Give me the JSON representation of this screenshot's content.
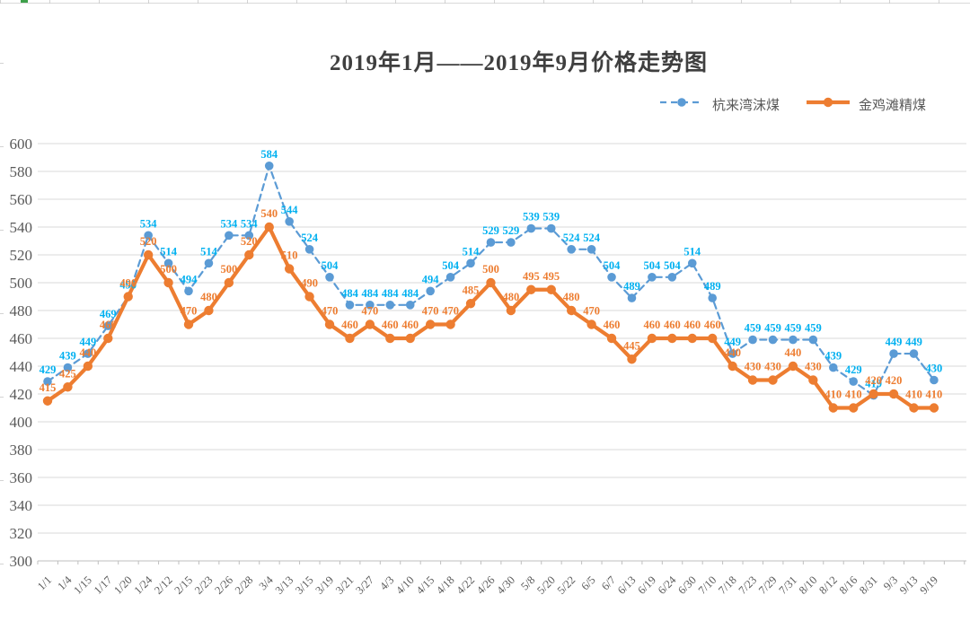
{
  "chart_data": {
    "type": "line",
    "title": "2019年1月——2019年9月价格走势图",
    "categories": [
      "1/1",
      "1/4",
      "1/15",
      "1/17",
      "1/20",
      "1/24",
      "2/12",
      "2/15",
      "2/23",
      "2/26",
      "2/28",
      "3/4",
      "3/13",
      "3/15",
      "3/19",
      "3/21",
      "3/27",
      "4/3",
      "4/10",
      "4/15",
      "4/18",
      "4/22",
      "4/26",
      "4/30",
      "5/8",
      "5/20",
      "5/22",
      "6/5",
      "6/7",
      "6/13",
      "6/19",
      "6/24",
      "6/30",
      "7/10",
      "7/18",
      "7/23",
      "7/29",
      "7/31",
      "8/10",
      "8/12",
      "8/16",
      "8/31",
      "9/3",
      "9/13",
      "9/19"
    ],
    "series": [
      {
        "name": "杭来湾沫煤",
        "line_style": "dashed",
        "line_color": "#5b9bd5",
        "label_color": "#00b0f0",
        "values": [
          429,
          439,
          449,
          469,
          490,
          534,
          514,
          494,
          514,
          534,
          534,
          584,
          544,
          524,
          504,
          484,
          484,
          484,
          484,
          494,
          504,
          514,
          529,
          529,
          539,
          539,
          524,
          524,
          504,
          489,
          504,
          504,
          514,
          489,
          449,
          459,
          459,
          459,
          459,
          439,
          429,
          419,
          449,
          449,
          430
        ]
      },
      {
        "name": "金鸡滩精煤",
        "line_style": "solid",
        "line_color": "#ed7d31",
        "label_color": "#ed7d31",
        "values": [
          415,
          425,
          440,
          460,
          490,
          520,
          500,
          470,
          480,
          500,
          520,
          540,
          510,
          490,
          470,
          460,
          470,
          460,
          460,
          470,
          470,
          485,
          500,
          480,
          495,
          495,
          480,
          470,
          460,
          445,
          460,
          460,
          460,
          460,
          440,
          430,
          430,
          440,
          430,
          410,
          410,
          420,
          420,
          410,
          410
        ]
      }
    ],
    "ylim": [
      300,
      600
    ],
    "ytick_step": 20,
    "grid": true,
    "grid_color": "#d9d9d9",
    "axis_color": "#bfbfbf",
    "axis_text_color": "#595959",
    "legend_position": "top-right"
  }
}
